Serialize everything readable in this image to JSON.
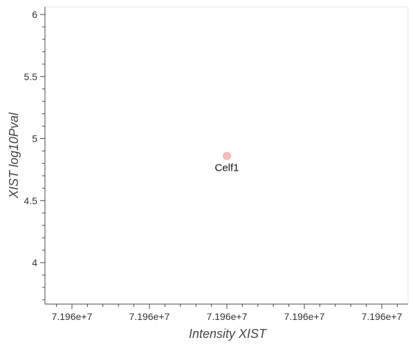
{
  "chart_data": {
    "type": "scatter",
    "xlabel": "Intensity XIST",
    "ylabel": "XIST log10Pval",
    "x_tick_labels": [
      "7.196e+7",
      "7.196e+7",
      "7.196e+7",
      "7.196e+7",
      "7.196e+7"
    ],
    "y_ticks": [
      4,
      4.5,
      5,
      5.5,
      6
    ],
    "y_tick_labels": [
      "4",
      "4.5",
      "5",
      "5.5",
      "6"
    ],
    "ylim": [
      3.66,
      6.05
    ],
    "points": [
      {
        "label": "Celf1",
        "x_tick_index": 2,
        "y": 4.86,
        "color": "#f4a6a0"
      }
    ],
    "grid": false
  }
}
